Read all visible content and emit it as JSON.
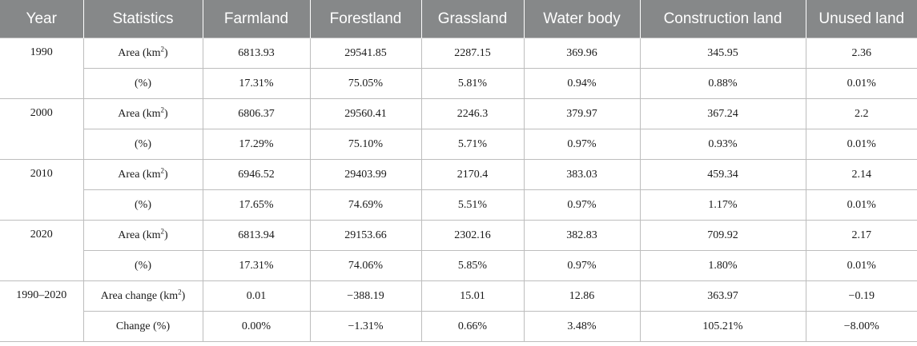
{
  "headers": [
    "Year",
    "Statistics",
    "Farmland",
    "Forestland",
    "Grassland",
    "Water body",
    "Construction land",
    "Unused land"
  ],
  "groups": [
    {
      "year": "1990",
      "rows": [
        {
          "stat": "Area (km²)",
          "values": [
            "6813.93",
            "29541.85",
            "2287.15",
            "369.96",
            "345.95",
            "2.36"
          ]
        },
        {
          "stat": "(%)",
          "values": [
            "17.31%",
            "75.05%",
            "5.81%",
            "0.94%",
            "0.88%",
            "0.01%"
          ]
        }
      ]
    },
    {
      "year": "2000",
      "rows": [
        {
          "stat": "Area (km²)",
          "values": [
            "6806.37",
            "29560.41",
            "2246.3",
            "379.97",
            "367.24",
            "2.2"
          ]
        },
        {
          "stat": "(%)",
          "values": [
            "17.29%",
            "75.10%",
            "5.71%",
            "0.97%",
            "0.93%",
            "0.01%"
          ]
        }
      ]
    },
    {
      "year": "2010",
      "rows": [
        {
          "stat": "Area (km²)",
          "values": [
            "6946.52",
            "29403.99",
            "2170.4",
            "383.03",
            "459.34",
            "2.14"
          ]
        },
        {
          "stat": "(%)",
          "values": [
            "17.65%",
            "74.69%",
            "5.51%",
            "0.97%",
            "1.17%",
            "0.01%"
          ]
        }
      ]
    },
    {
      "year": "2020",
      "rows": [
        {
          "stat": "Area (km²)",
          "values": [
            "6813.94",
            "29153.66",
            "2302.16",
            "382.83",
            "709.92",
            "2.17"
          ]
        },
        {
          "stat": "(%)",
          "values": [
            "17.31%",
            "74.06%",
            "5.85%",
            "0.97%",
            "1.80%",
            "0.01%"
          ]
        }
      ]
    },
    {
      "year": "1990–2020",
      "rows": [
        {
          "stat": "Area change (km²)",
          "values": [
            "0.01",
            "−388.19",
            "15.01",
            "12.86",
            "363.97",
            "−0.19"
          ]
        },
        {
          "stat": "Change (%)",
          "values": [
            "0.00%",
            "−1.31%",
            "0.66%",
            "3.48%",
            "105.21%",
            "−8.00%"
          ]
        }
      ]
    }
  ]
}
